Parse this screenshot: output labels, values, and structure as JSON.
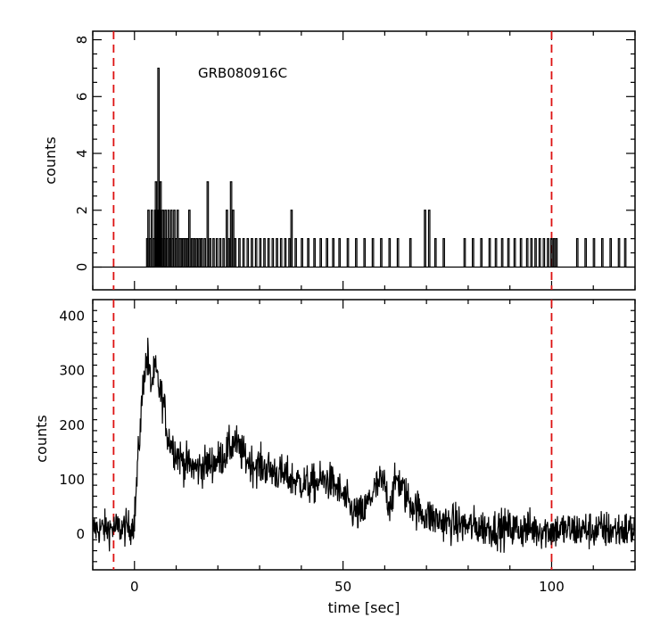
{
  "chart_data": [
    {
      "type": "line",
      "panel": "top",
      "title": "",
      "annotation": "GRB080916C",
      "xlabel": "",
      "ylabel": "counts",
      "xlim": [
        -10,
        120
      ],
      "ylim": [
        -0.8,
        8.3
      ],
      "yticks": [
        0,
        2,
        4,
        6,
        8
      ],
      "yticklabels": [
        "0",
        "2",
        "4",
        "6",
        "8"
      ],
      "xticks": [
        0,
        50,
        100
      ],
      "style": "step",
      "color": "#000000",
      "onset": 2.9,
      "last_event": 117.5,
      "events": [
        [
          2.9,
          1
        ],
        [
          3.2,
          2
        ],
        [
          3.6,
          1
        ],
        [
          4.0,
          2
        ],
        [
          4.4,
          1
        ],
        [
          4.8,
          2
        ],
        [
          5.0,
          3
        ],
        [
          5.2,
          1
        ],
        [
          5.4,
          2
        ],
        [
          5.6,
          7
        ],
        [
          5.9,
          2
        ],
        [
          6.1,
          3
        ],
        [
          6.4,
          1
        ],
        [
          6.7,
          2
        ],
        [
          7.0,
          1
        ],
        [
          7.3,
          2
        ],
        [
          7.6,
          1
        ],
        [
          8.0,
          2
        ],
        [
          8.3,
          1
        ],
        [
          8.7,
          2
        ],
        [
          9.0,
          1
        ],
        [
          9.4,
          2
        ],
        [
          9.8,
          1
        ],
        [
          10.2,
          2
        ],
        [
          10.6,
          1
        ],
        [
          11.0,
          1
        ],
        [
          11.5,
          1
        ],
        [
          12.0,
          1
        ],
        [
          12.5,
          1
        ],
        [
          13.0,
          2
        ],
        [
          13.6,
          1
        ],
        [
          14.2,
          1
        ],
        [
          14.8,
          1
        ],
        [
          15.4,
          1
        ],
        [
          16.0,
          1
        ],
        [
          16.7,
          1
        ],
        [
          17.4,
          3
        ],
        [
          18.0,
          1
        ],
        [
          18.8,
          1
        ],
        [
          19.6,
          1
        ],
        [
          20.4,
          1
        ],
        [
          21.2,
          1
        ],
        [
          22.0,
          2
        ],
        [
          22.5,
          1
        ],
        [
          23.0,
          3
        ],
        [
          23.5,
          2
        ],
        [
          24.0,
          1
        ],
        [
          25.0,
          1
        ],
        [
          26.0,
          1
        ],
        [
          27.0,
          1
        ],
        [
          28.0,
          1
        ],
        [
          29.0,
          1
        ],
        [
          30.0,
          1
        ],
        [
          31.0,
          1
        ],
        [
          32.0,
          1
        ],
        [
          33.0,
          1
        ],
        [
          34.0,
          1
        ],
        [
          35.0,
          1
        ],
        [
          36.0,
          1
        ],
        [
          37.0,
          1
        ],
        [
          37.5,
          2
        ],
        [
          38.5,
          1
        ],
        [
          40.0,
          1
        ],
        [
          41.5,
          1
        ],
        [
          43.0,
          1
        ],
        [
          44.5,
          1
        ],
        [
          46.0,
          1
        ],
        [
          47.5,
          1
        ],
        [
          49.0,
          1
        ],
        [
          51.0,
          1
        ],
        [
          53.0,
          1
        ],
        [
          55.0,
          1
        ],
        [
          57.0,
          1
        ],
        [
          59.0,
          1
        ],
        [
          61.0,
          1
        ],
        [
          63.0,
          1
        ],
        [
          66.0,
          1
        ],
        [
          69.5,
          2
        ],
        [
          70.5,
          2
        ],
        [
          72.0,
          1
        ],
        [
          74.0,
          1
        ],
        [
          79.0,
          1
        ],
        [
          81.0,
          1
        ],
        [
          83.0,
          1
        ],
        [
          85.0,
          1
        ],
        [
          86.5,
          1
        ],
        [
          88.0,
          1
        ],
        [
          89.5,
          1
        ],
        [
          91.0,
          1
        ],
        [
          92.5,
          1
        ],
        [
          94.0,
          1
        ],
        [
          95.0,
          1
        ],
        [
          96.0,
          1
        ],
        [
          97.0,
          1
        ],
        [
          98.0,
          1
        ],
        [
          99.0,
          1
        ],
        [
          99.8,
          1
        ],
        [
          100.4,
          1
        ],
        [
          101.0,
          1
        ],
        [
          106.0,
          1
        ],
        [
          108.0,
          1
        ],
        [
          110.0,
          1
        ],
        [
          112.0,
          1
        ],
        [
          114.0,
          1
        ],
        [
          116.0,
          1
        ],
        [
          117.5,
          1
        ]
      ],
      "markers": [
        {
          "x": -5,
          "color": "#dd1111",
          "style": "dashed"
        },
        {
          "x": 100,
          "color": "#dd1111",
          "style": "dashed"
        }
      ]
    },
    {
      "type": "line",
      "panel": "bottom",
      "title": "",
      "xlabel": "time [sec]",
      "ylabel": "counts",
      "xlim": [
        -10,
        120
      ],
      "ylim": [
        -65,
        430
      ],
      "xticks": [
        0,
        50,
        100
      ],
      "xticklabels": [
        "0",
        "50",
        "100"
      ],
      "yticks": [
        0,
        100,
        200,
        300,
        400
      ],
      "yticklabels": [
        "0",
        "100",
        "200",
        "300",
        "400"
      ],
      "color": "#000000",
      "profile": [
        [
          -10,
          10
        ],
        [
          -1,
          12
        ],
        [
          0,
          25
        ],
        [
          0.8,
          130
        ],
        [
          1.5,
          210
        ],
        [
          2.2,
          290
        ],
        [
          3,
          320
        ],
        [
          4,
          275
        ],
        [
          5,
          300
        ],
        [
          6,
          265
        ],
        [
          7,
          240
        ],
        [
          8,
          180
        ],
        [
          10,
          150
        ],
        [
          12,
          130
        ],
        [
          15,
          120
        ],
        [
          18,
          130
        ],
        [
          20,
          135
        ],
        [
          22,
          150
        ],
        [
          24,
          170
        ],
        [
          26,
          145
        ],
        [
          28,
          130
        ],
        [
          30,
          125
        ],
        [
          32,
          120
        ],
        [
          35,
          110
        ],
        [
          38,
          100
        ],
        [
          40,
          95
        ],
        [
          42,
          90
        ],
        [
          44,
          95
        ],
        [
          46,
          100
        ],
        [
          48,
          90
        ],
        [
          50,
          70
        ],
        [
          52,
          45
        ],
        [
          54,
          35
        ],
        [
          55,
          40
        ],
        [
          57,
          75
        ],
        [
          59,
          95
        ],
        [
          60,
          90
        ],
        [
          61,
          55
        ],
        [
          62,
          75
        ],
        [
          63,
          105
        ],
        [
          64,
          85
        ],
        [
          66,
          60
        ],
        [
          68,
          45
        ],
        [
          70,
          35
        ],
        [
          73,
          25
        ],
        [
          76,
          20
        ],
        [
          80,
          15
        ],
        [
          85,
          12
        ],
        [
          90,
          10
        ],
        [
          95,
          10
        ],
        [
          100,
          8
        ],
        [
          105,
          8
        ],
        [
          110,
          8
        ],
        [
          115,
          8
        ],
        [
          120,
          8
        ]
      ],
      "noise_amplitude": 18,
      "peak": {
        "x": 3.2,
        "y": 360
      },
      "markers": [
        {
          "x": -5,
          "color": "#dd1111",
          "style": "dashed"
        },
        {
          "x": 100,
          "color": "#dd1111",
          "style": "dashed"
        }
      ]
    }
  ]
}
